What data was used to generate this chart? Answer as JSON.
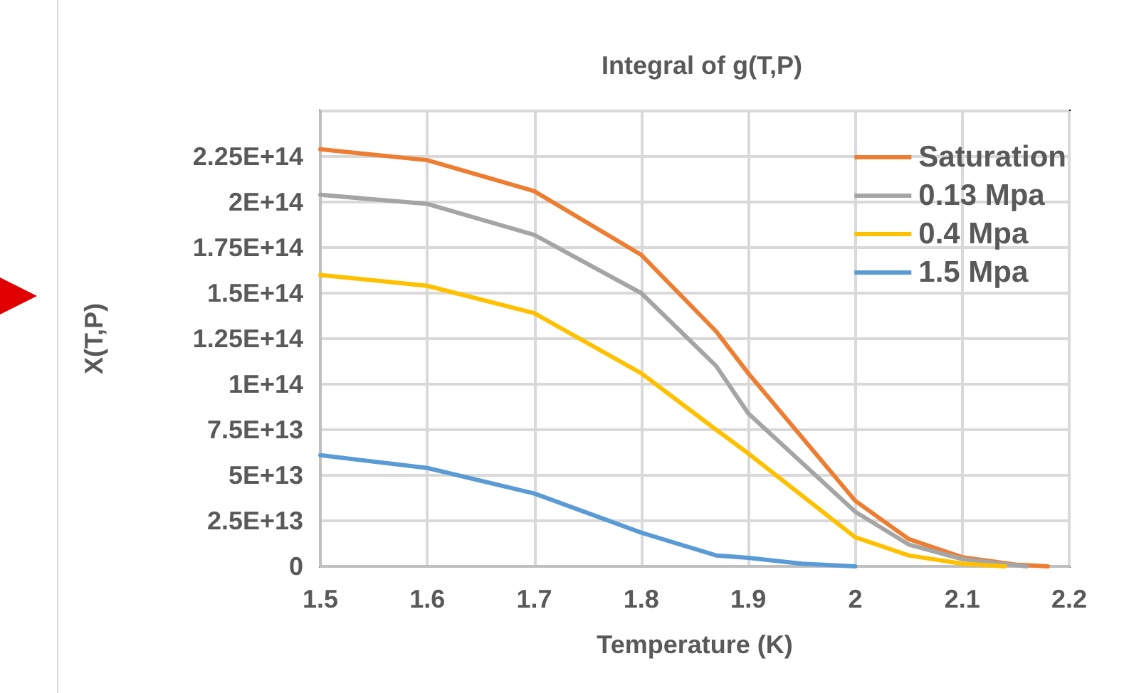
{
  "chart_data": {
    "type": "line",
    "title": "Integral of g(T,P)",
    "xlabel": "Temperature (K)",
    "ylabel": "X(T,P)",
    "xlim": [
      1.5,
      2.2
    ],
    "xticks": [
      1.5,
      1.6,
      1.7,
      1.8,
      1.9,
      2,
      2.1,
      2.2
    ],
    "ylim": [
      0,
      250000000000000
    ],
    "yticks": [
      {
        "value": 0,
        "label": "0"
      },
      {
        "value": 25000000000000,
        "label": "2.5E+13"
      },
      {
        "value": 50000000000000,
        "label": "5E+13"
      },
      {
        "value": 75000000000000,
        "label": "7.5E+13"
      },
      {
        "value": 100000000000000,
        "label": "1E+14"
      },
      {
        "value": 125000000000000,
        "label": "1.25E+14"
      },
      {
        "value": 150000000000000,
        "label": "1.5E+14"
      },
      {
        "value": 175000000000000,
        "label": "1.75E+14"
      },
      {
        "value": 200000000000000,
        "label": "2E+14"
      },
      {
        "value": 225000000000000,
        "label": "2.25E+14"
      },
      {
        "value": 250000000000000,
        "label": null
      }
    ],
    "grid": true,
    "legend": "top right",
    "marker": "none",
    "line_style": "solid",
    "series": [
      {
        "name": "Saturation",
        "color": "#ed7d31",
        "x": [
          1.5,
          1.6,
          1.7,
          1.8,
          1.87,
          1.9,
          2.0,
          2.05,
          2.1,
          2.15,
          2.18
        ],
        "values": [
          229000000000000,
          223000000000000,
          206000000000000,
          171000000000000,
          129000000000000,
          106000000000000,
          36000000000000,
          15000000000000,
          5000000000000,
          1000000000000,
          0
        ]
      },
      {
        "name": "0.13 Mpa",
        "color": "#a5a5a5",
        "x": [
          1.5,
          1.6,
          1.7,
          1.8,
          1.87,
          1.9,
          2.0,
          2.05,
          2.1,
          2.16
        ],
        "values": [
          204000000000000,
          199000000000000,
          182000000000000,
          150000000000000,
          110000000000000,
          84000000000000,
          30000000000000,
          12000000000000,
          4000000000000,
          0
        ]
      },
      {
        "name": "0.4 Mpa",
        "color": "#ffc000",
        "x": [
          1.5,
          1.6,
          1.7,
          1.8,
          1.87,
          1.9,
          2.0,
          2.05,
          2.1,
          2.14
        ],
        "values": [
          160000000000000,
          154000000000000,
          139000000000000,
          106000000000000,
          75000000000000,
          62000000000000,
          16000000000000,
          6000000000000,
          1500000000000,
          0
        ]
      },
      {
        "name": "1.5 Mpa",
        "color": "#5b9bd5",
        "x": [
          1.5,
          1.6,
          1.7,
          1.8,
          1.87,
          1.9,
          1.95,
          2.0
        ],
        "values": [
          61000000000000,
          54000000000000,
          40000000000000,
          18500000000000,
          6000000000000,
          4700000000000,
          1500000000000,
          0
        ]
      }
    ]
  }
}
